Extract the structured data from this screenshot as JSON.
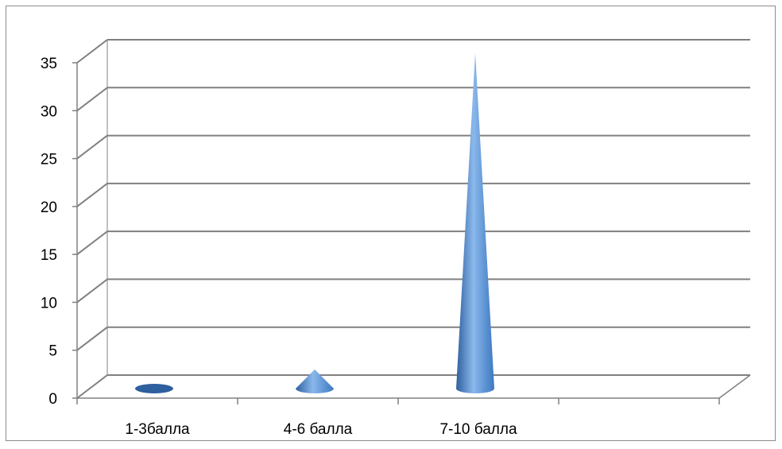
{
  "chart_data": {
    "type": "bar",
    "bar_shape": "cone",
    "view": "3d",
    "categories": [
      "1-3балла",
      "4-6 балла",
      "7-10 балла",
      ""
    ],
    "values": [
      0,
      2,
      35,
      0
    ],
    "ylim": [
      0,
      35
    ],
    "ytick_step": 5,
    "yticks": [
      "0",
      "5",
      "10",
      "15",
      "20",
      "25",
      "30",
      "35"
    ],
    "grid": true,
    "legend": "none",
    "colors": {
      "cone_light": "#8ab8ec",
      "cone_mid": "#4f8fd6",
      "cone_dark": "#2e5f9e",
      "gridline": "#808080",
      "axis": "#808080"
    }
  }
}
